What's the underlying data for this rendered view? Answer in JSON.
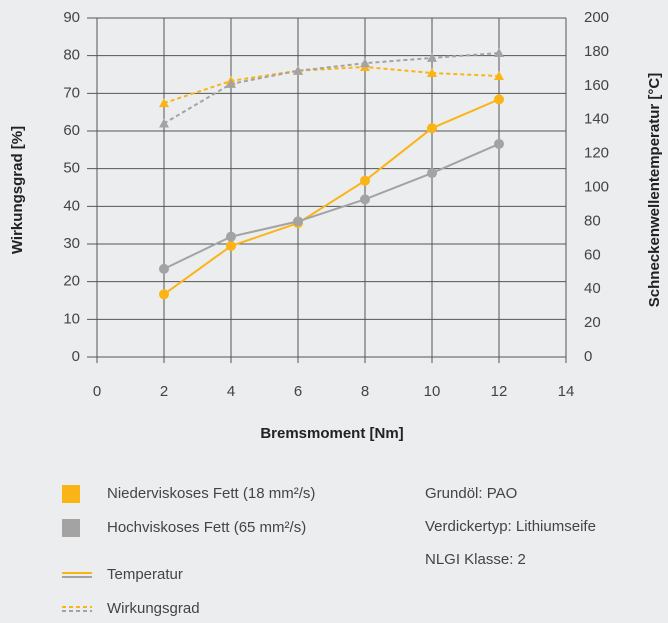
{
  "chart_data": {
    "type": "line",
    "xlabel": "Bremsmoment [Nm]",
    "ylabel": "Wirkungsgrad [%]",
    "y2label": "Schneckenwellentemperatur [°C]",
    "x": [
      2,
      4,
      6,
      8,
      10,
      12
    ],
    "xlim": [
      0,
      14
    ],
    "xticks": [
      0,
      2,
      4,
      6,
      8,
      10,
      12,
      14
    ],
    "ylim": [
      0,
      90
    ],
    "yticks": [
      0,
      10,
      20,
      30,
      40,
      50,
      60,
      70,
      80,
      90
    ],
    "y2lim": [
      0,
      200
    ],
    "y2ticks": [
      0,
      20,
      40,
      60,
      80,
      100,
      120,
      140,
      160,
      180,
      200
    ],
    "grid": true,
    "series": [
      {
        "color": "#fbb416",
        "axis": "y2",
        "dash": "solid",
        "marker": "circle",
        "values": [
          37,
          65.5,
          79,
          104,
          135,
          152
        ]
      },
      {
        "color": "#a3a3a3",
        "axis": "y2",
        "dash": "solid",
        "marker": "circle",
        "values": [
          52,
          71,
          80,
          93,
          108.5,
          125.7
        ]
      },
      {
        "color": "#fbb416",
        "axis": "y",
        "dash": "dotted",
        "marker": "triangle",
        "values": [
          67.4,
          73.3,
          76,
          77,
          75.4,
          74.6
        ]
      },
      {
        "color": "#a3a3a3",
        "axis": "y",
        "dash": "dotted",
        "marker": "triangle",
        "values": [
          62,
          72.5,
          76,
          78,
          79.4,
          80.7
        ]
      }
    ],
    "legend": {
      "colors": [
        {
          "label": "Niederviskoses Fett (18 mm²/s)",
          "color": "#fbb416"
        },
        {
          "label": "Hochviskoses Fett (65 mm²/s)",
          "color": "#a3a3a3"
        }
      ],
      "styles": [
        {
          "label": "Temperatur",
          "dash": "solid"
        },
        {
          "label": "Wirkungsgrad",
          "dash": "dotted"
        }
      ]
    },
    "notes": [
      "Grundöl: PAO",
      "Verdickertyp: Lithiumseife",
      "NLGI Klasse: 2"
    ]
  }
}
